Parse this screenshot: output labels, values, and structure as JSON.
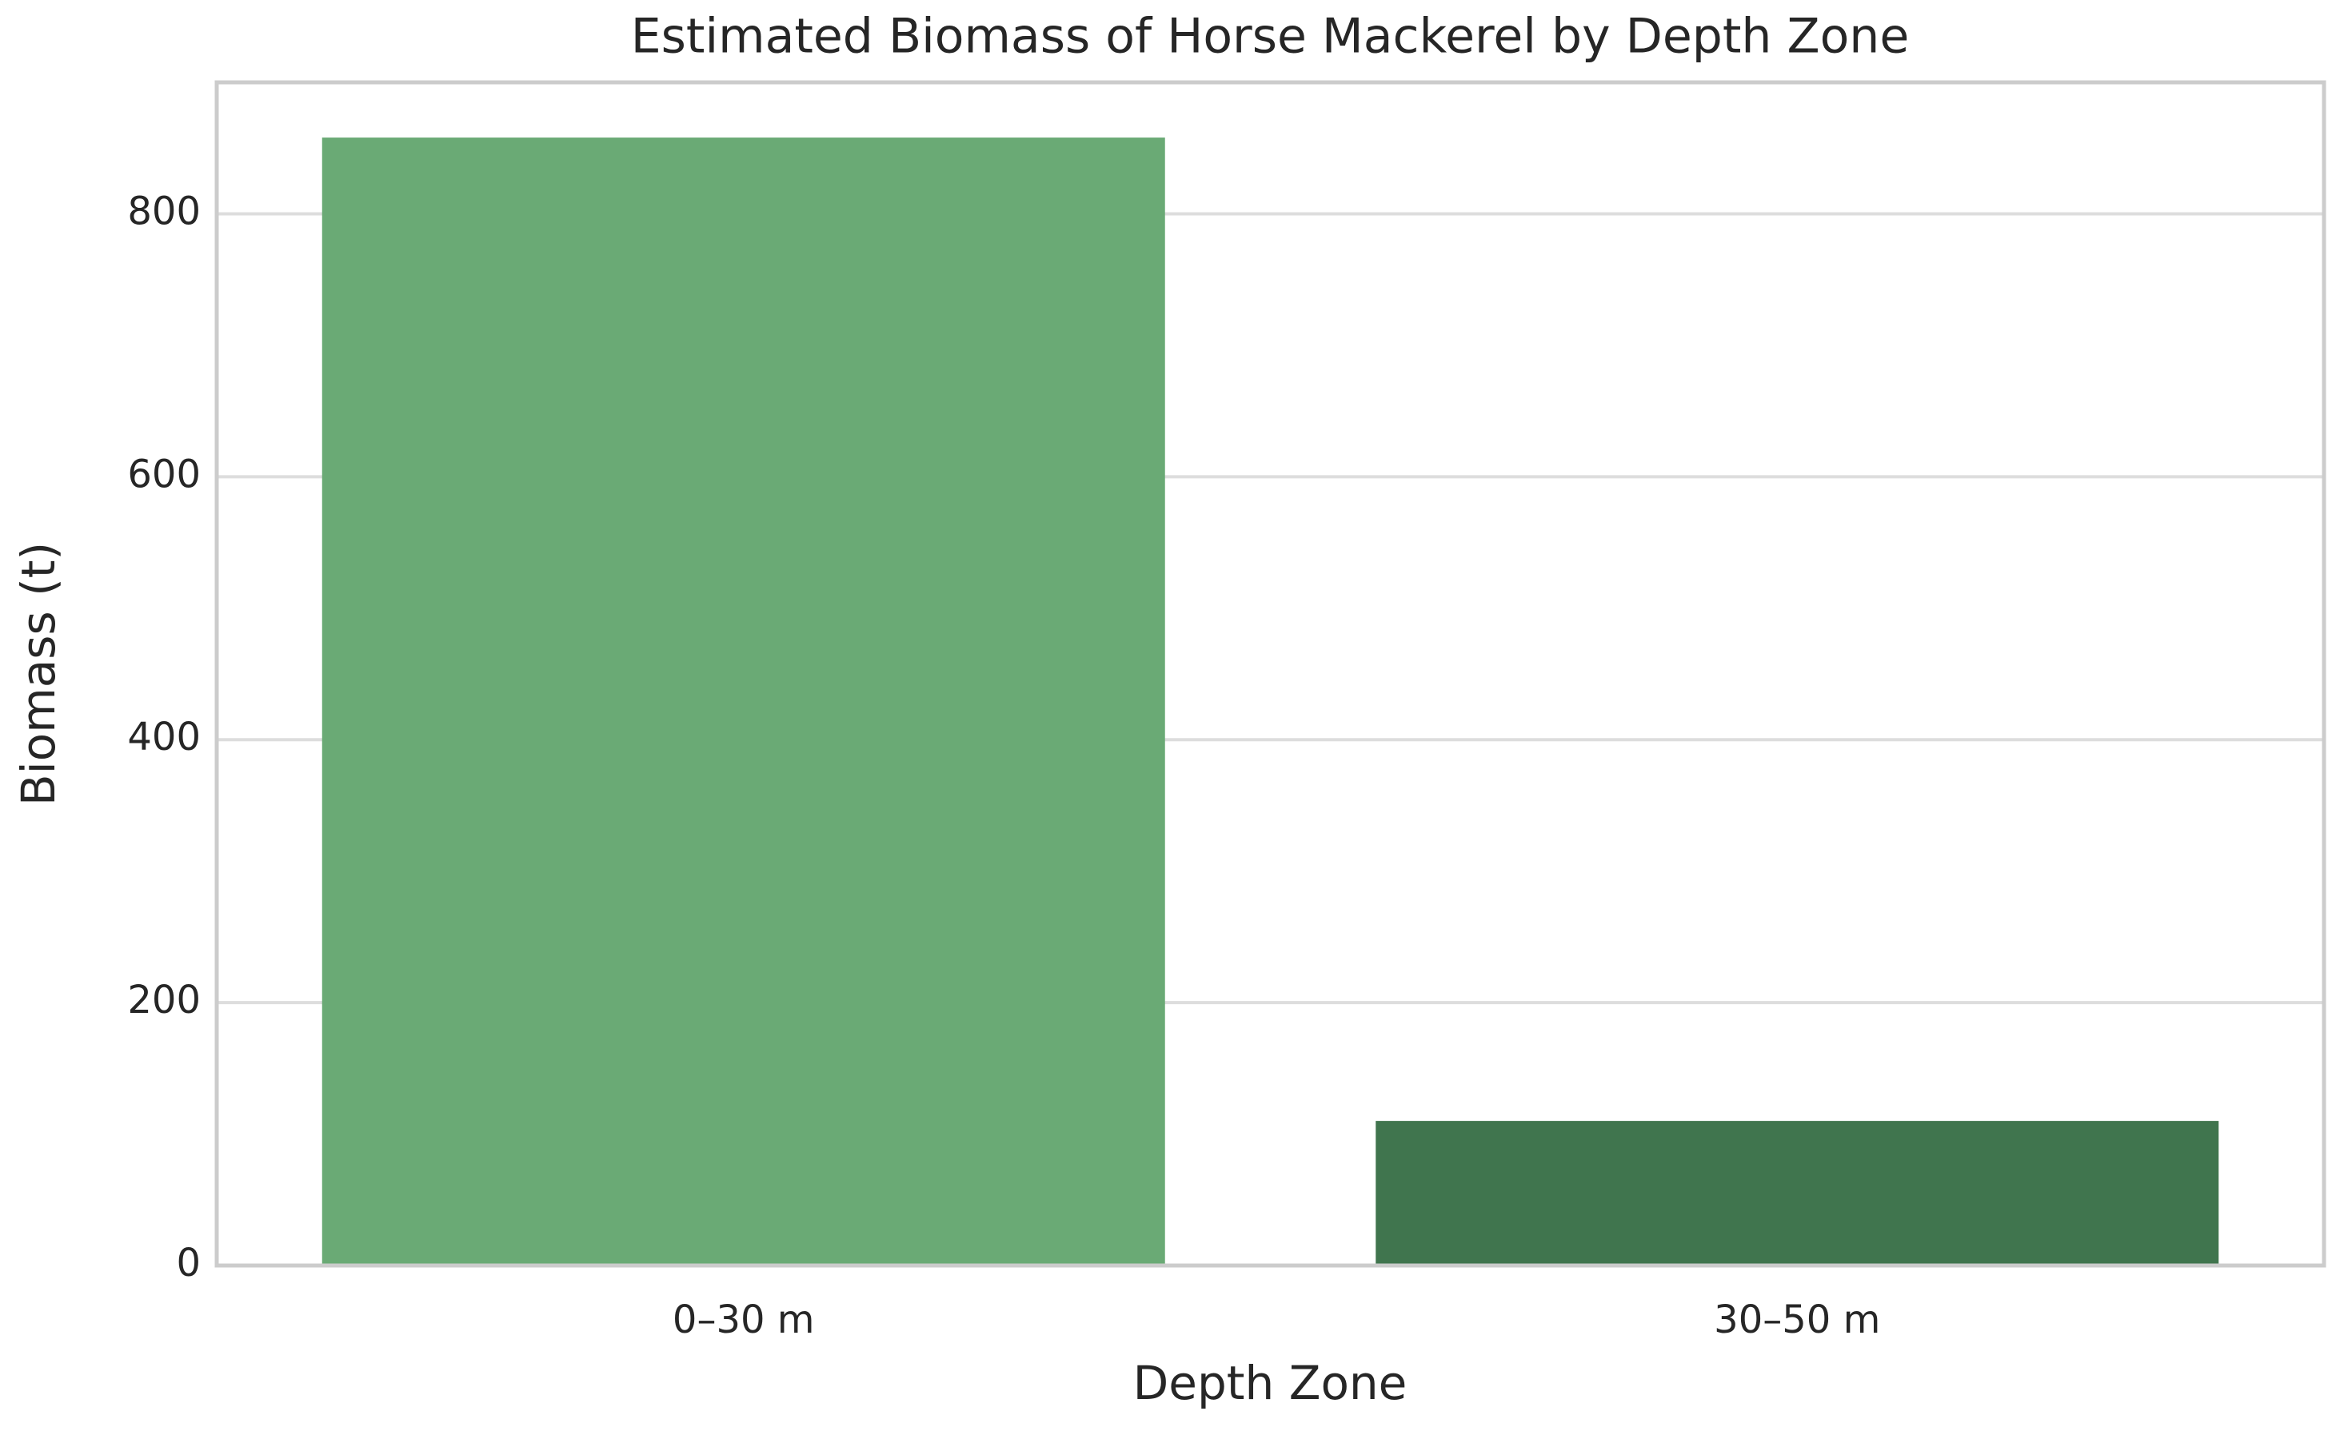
{
  "chart_data": {
    "type": "bar",
    "title": "Estimated Biomass of Horse Mackerel by Depth Zone",
    "x_label": "Depth Zone",
    "y_label": "Biomass (t)",
    "categories": [
      "0–30 m",
      "30–50 m"
    ],
    "values": [
      858,
      110
    ],
    "colors": [
      "#6aaa75",
      "#40754e"
    ],
    "ylim": [
      0,
      900
    ],
    "yticks": [
      0,
      200,
      400,
      600,
      800
    ],
    "grid": true
  }
}
